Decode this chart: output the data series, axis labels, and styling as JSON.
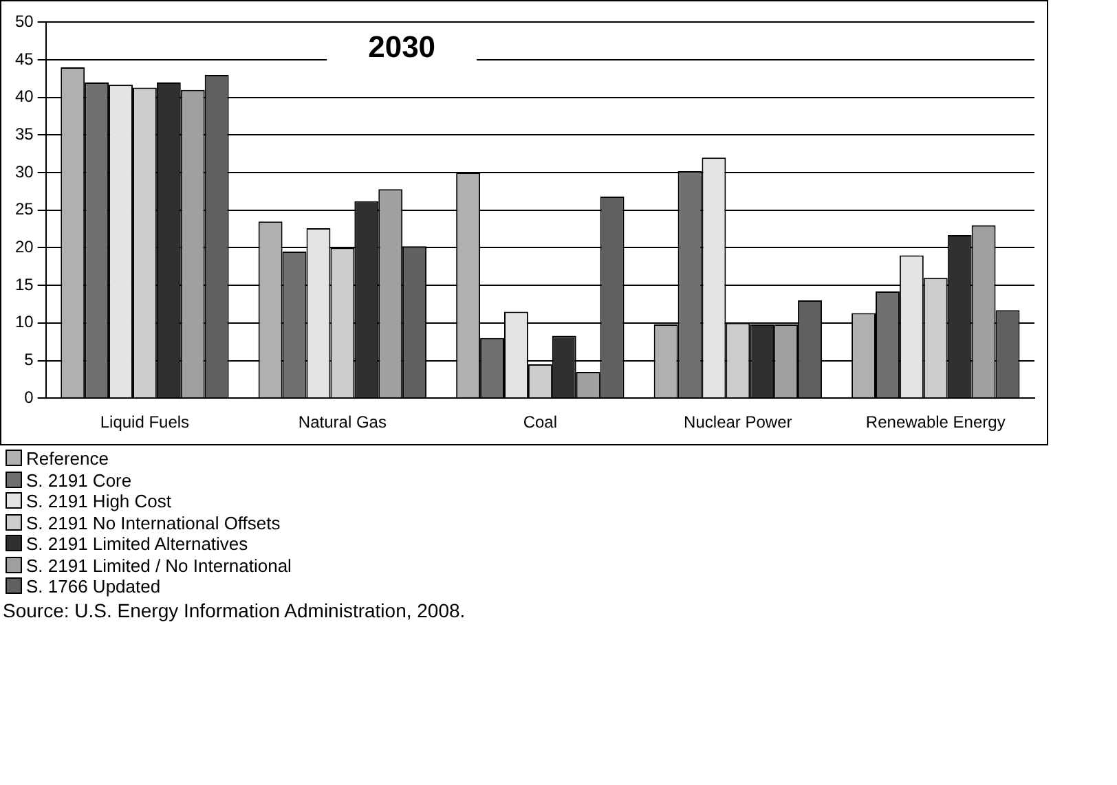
{
  "chart_data": {
    "type": "bar",
    "title": "2030",
    "categories": [
      "Liquid Fuels",
      "Natural Gas",
      "Coal",
      "Nuclear Power",
      "Renewable Energy"
    ],
    "series": [
      {
        "name": "Reference",
        "color": "#b0b0b0",
        "values": [
          44,
          23.5,
          30,
          9.8,
          11.3
        ]
      },
      {
        "name": "S. 2191 Core",
        "color": "#707070",
        "values": [
          42,
          19.5,
          8,
          30.2,
          14.2
        ]
      },
      {
        "name": "S. 2191 High Cost",
        "color": "#e4e4e4",
        "values": [
          41.7,
          22.6,
          11.5,
          32,
          19
        ]
      },
      {
        "name": "S. 2191 No International Offsets",
        "color": "#cdcdcd",
        "values": [
          41.3,
          20,
          4.5,
          10,
          16
        ]
      },
      {
        "name": "S. 2191 Limited Alternatives",
        "color": "#303030",
        "values": [
          42,
          26.2,
          8.3,
          9.8,
          21.7
        ]
      },
      {
        "name": "S. 2191 Limited / No International",
        "color": "#a0a0a0",
        "values": [
          41,
          27.8,
          3.5,
          9.8,
          23
        ]
      },
      {
        "name": "S. 1766 Updated",
        "color": "#606060",
        "values": [
          43,
          20.2,
          26.8,
          13,
          11.7
        ]
      }
    ],
    "ylim": [
      0,
      50
    ],
    "yticks": [
      0,
      5,
      10,
      15,
      20,
      25,
      30,
      35,
      40,
      45,
      50
    ],
    "grid": "y",
    "legend": "bottom left",
    "annotations": [
      "Source:  U.S. Energy Information Administration, 2008."
    ]
  }
}
